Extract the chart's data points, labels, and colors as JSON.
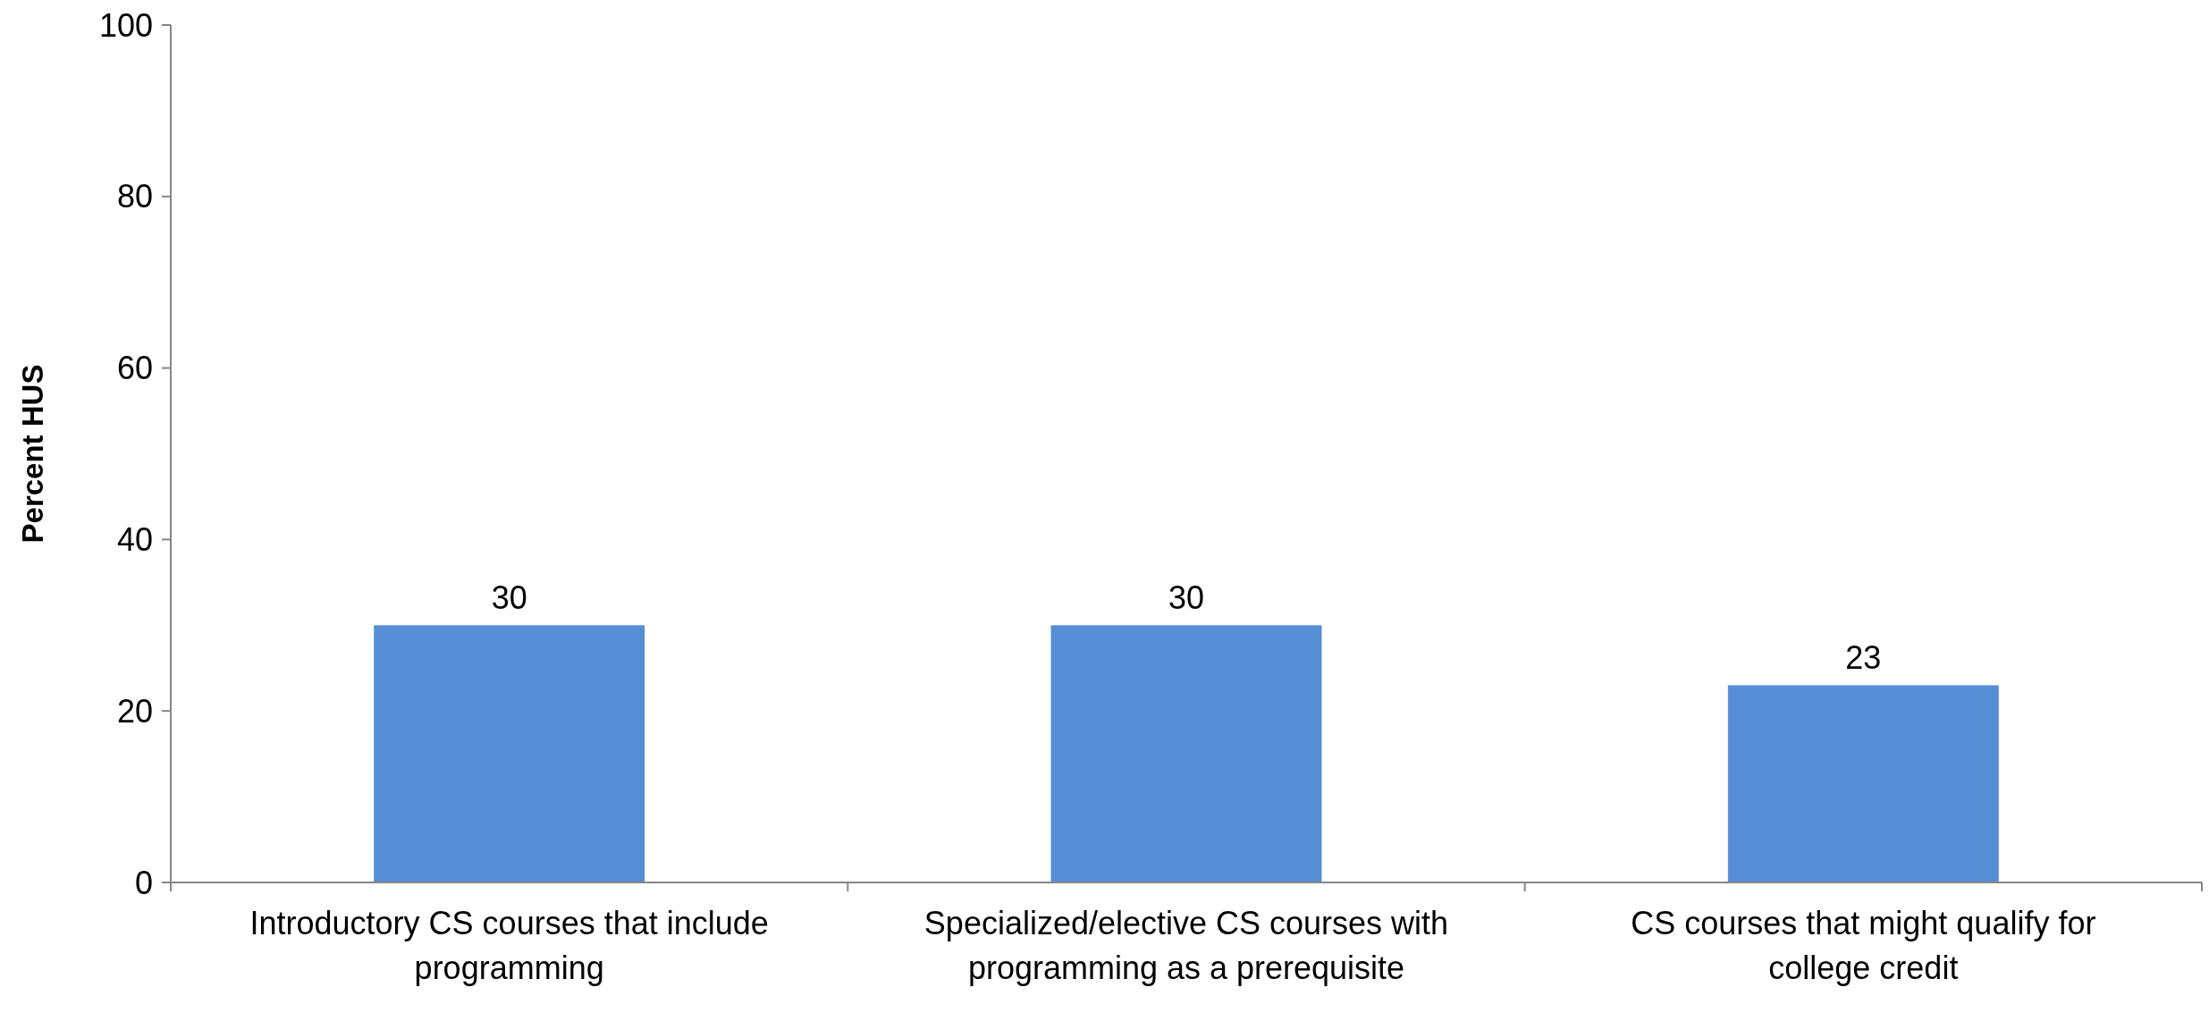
{
  "chart_data": {
    "type": "bar",
    "ylabel": "Percent HUS",
    "categories": [
      "Introductory CS courses that include programming",
      "Specialized/elective CS courses with programming as a prerequisite",
      "CS courses that might qualify for college credit"
    ],
    "values": [
      30,
      30,
      23
    ],
    "color": "#558ed5",
    "ylim": [
      0,
      100
    ],
    "yticks": [
      0,
      20,
      40,
      60,
      80,
      100
    ],
    "data_labels": true,
    "grid": false
  }
}
